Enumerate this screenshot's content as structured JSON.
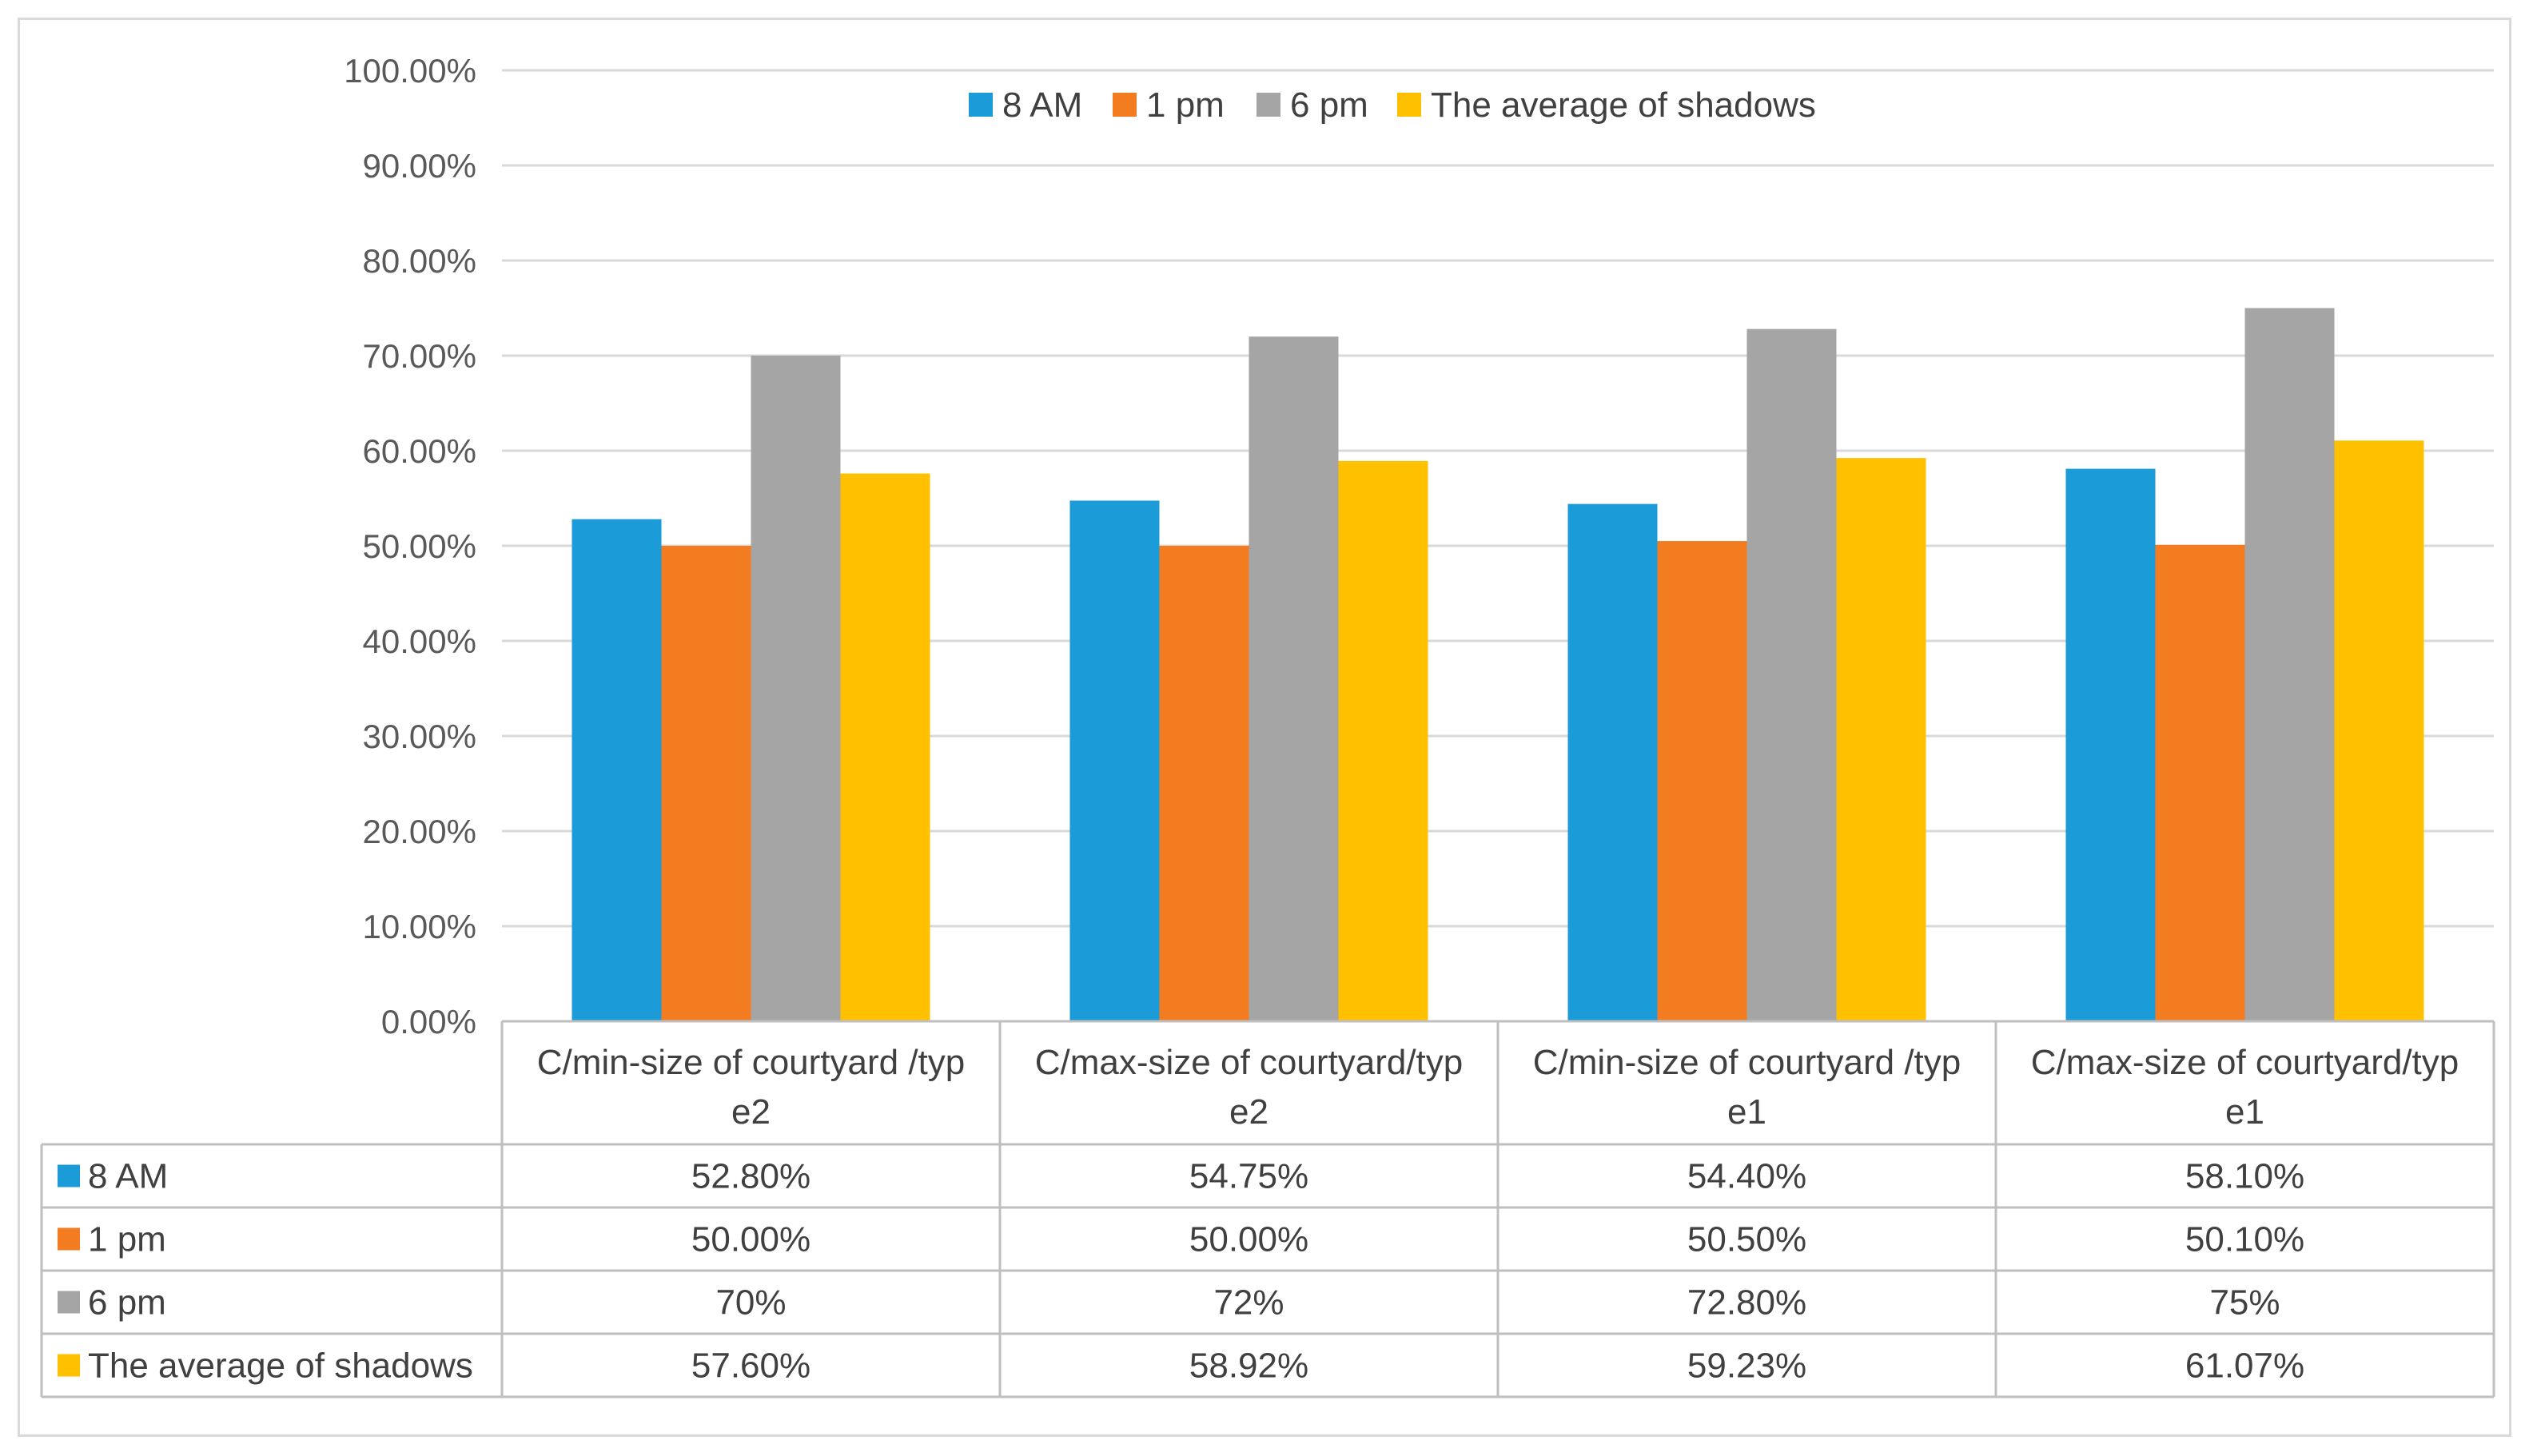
{
  "chart_data": {
    "type": "bar",
    "title": "",
    "xlabel": "",
    "ylabel": "",
    "ylim": [
      0,
      100
    ],
    "y_ticks": [
      "0.00%",
      "10.00%",
      "20.00%",
      "30.00%",
      "40.00%",
      "50.00%",
      "60.00%",
      "70.00%",
      "80.00%",
      "90.00%",
      "100.00%"
    ],
    "categories": [
      [
        "C/min-size of courtyard /typ",
        "e2"
      ],
      [
        "C/max-size of courtyard/typ",
        "e2"
      ],
      [
        "C/min-size of courtyard /typ",
        "e1"
      ],
      [
        "C/max-size of courtyard/typ",
        "e1"
      ]
    ],
    "legend_position": "top",
    "grid": true,
    "series": [
      {
        "name": "8 AM",
        "color": "#1b9bd7",
        "values": [
          52.8,
          54.75,
          54.4,
          58.1
        ],
        "labels": [
          "52.80%",
          "54.75%",
          "54.40%",
          "58.10%"
        ]
      },
      {
        "name": "1 pm",
        "color": "#f37c21",
        "values": [
          50.0,
          50.0,
          50.5,
          50.1
        ],
        "labels": [
          "50.00%",
          "50.00%",
          "50.50%",
          "50.10%"
        ]
      },
      {
        "name": "6 pm",
        "color": "#a5a5a5",
        "values": [
          70,
          72,
          72.8,
          75
        ],
        "labels": [
          "70%",
          "72%",
          "72.80%",
          "75%"
        ]
      },
      {
        "name": "The average of shadows",
        "color": "#ffc000",
        "values": [
          57.6,
          58.92,
          59.23,
          61.07
        ],
        "labels": [
          "57.60%",
          "58.92%",
          "59.23%",
          "61.07%"
        ]
      }
    ]
  }
}
